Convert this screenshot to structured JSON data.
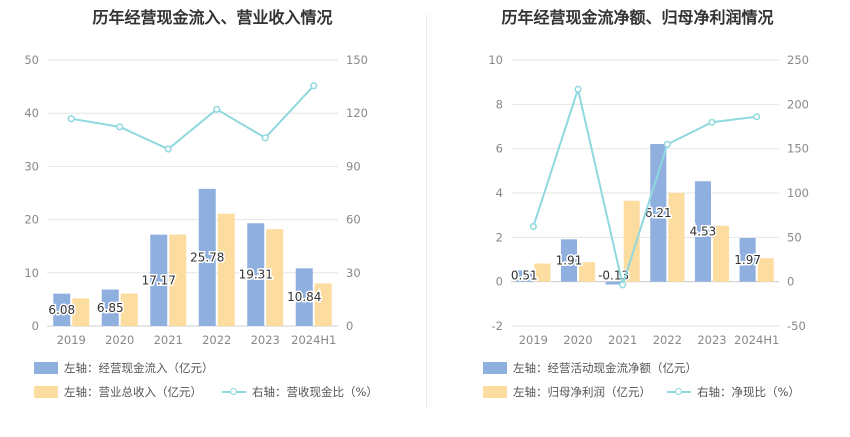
{
  "chart_data": [
    {
      "type": "bar",
      "title": "历年经营现金流入、营业收入情况",
      "categories": [
        "2019",
        "2020",
        "2021",
        "2022",
        "2023",
        "2024H1"
      ],
      "left_axis": {
        "min": 0,
        "max": 50,
        "ticks": [
          "0",
          "10",
          "20",
          "30",
          "40",
          "50"
        ]
      },
      "right_axis": {
        "min": 0,
        "max": 150,
        "ticks": [
          "0",
          "30",
          "60",
          "90",
          "120",
          "150"
        ]
      },
      "series": [
        {
          "name": "左轴：经营现金流入（亿元）",
          "type": "bar",
          "axis": "left",
          "color": "#8fafdf",
          "values": [
            6.08,
            6.85,
            17.17,
            25.78,
            19.31,
            10.84
          ],
          "labels": [
            "6.08",
            "6.85",
            "17.17",
            "25.78",
            "19.31",
            "10.84"
          ]
        },
        {
          "name": "左轴：营业总收入（亿元）",
          "type": "bar",
          "axis": "left",
          "color": "#fddca0",
          "values": [
            5.2,
            6.1,
            17.2,
            21.1,
            18.2,
            8.0
          ]
        },
        {
          "name": "右轴：营收现金比（%）",
          "type": "line",
          "axis": "right",
          "color": "#8fd9de",
          "values": [
            116.9,
            112.3,
            99.8,
            122.2,
            106.1,
            135.5
          ]
        }
      ],
      "grid": true
    },
    {
      "type": "bar",
      "title": "历年经营现金流净额、归母净利润情况",
      "categories": [
        "2019",
        "2020",
        "2021",
        "2022",
        "2023",
        "2024H1"
      ],
      "left_axis": {
        "min": -2,
        "max": 10,
        "ticks": [
          "-2",
          "0",
          "2",
          "4",
          "6",
          "8",
          "10"
        ]
      },
      "right_axis": {
        "min": -50,
        "max": 250,
        "ticks": [
          "-50",
          "0",
          "50",
          "100",
          "150",
          "200",
          "250"
        ]
      },
      "series": [
        {
          "name": "左轴：经营活动现金流净额（亿元）",
          "type": "bar",
          "axis": "left",
          "color": "#8fafdf",
          "values": [
            0.51,
            1.91,
            -0.13,
            6.21,
            4.53,
            1.97
          ],
          "labels": [
            "0.51",
            "1.91",
            "-0.13",
            "6.21",
            "4.53",
            "1.97"
          ]
        },
        {
          "name": "左轴：归母净利润（亿元）",
          "type": "bar",
          "axis": "left",
          "color": "#fddca0",
          "values": [
            0.82,
            0.88,
            3.65,
            4.01,
            2.52,
            1.06
          ]
        },
        {
          "name": "右轴：净现比（%）",
          "type": "line",
          "axis": "right",
          "color": "#8fd9de",
          "values": [
            62.2,
            217.0,
            -3.6,
            154.9,
            179.8,
            186.0
          ]
        }
      ],
      "grid": true
    }
  ]
}
